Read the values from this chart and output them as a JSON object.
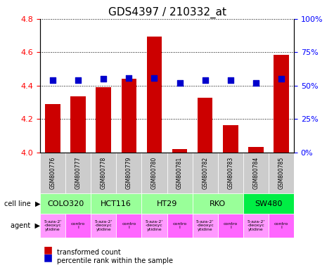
{
  "title": "GDS4397 / 210332_at",
  "samples": [
    "GSM800776",
    "GSM800777",
    "GSM800778",
    "GSM800779",
    "GSM800780",
    "GSM800781",
    "GSM800782",
    "GSM800783",
    "GSM800784",
    "GSM800785"
  ],
  "transformed_counts": [
    4.29,
    4.335,
    4.39,
    4.44,
    4.695,
    4.02,
    4.33,
    4.165,
    4.035,
    4.585
  ],
  "percentile_ranks": [
    54,
    54,
    55,
    56,
    56,
    52,
    54,
    54,
    52,
    55
  ],
  "percentile_ranks_raw": [
    0.54,
    0.54,
    0.55,
    0.56,
    0.56,
    0.52,
    0.54,
    0.54,
    0.52,
    0.55
  ],
  "bar_color": "#cc0000",
  "dot_color": "#0000cc",
  "ylim_left": [
    4.0,
    4.8
  ],
  "ylim_right": [
    0,
    1.0
  ],
  "yticks_left": [
    4.0,
    4.2,
    4.4,
    4.6,
    4.8
  ],
  "yticks_right": [
    0,
    0.25,
    0.5,
    0.75,
    1.0
  ],
  "ytick_labels_right": [
    "0%",
    "25%",
    "50%",
    "75%",
    "100%"
  ],
  "cell_lines": [
    "COLO320",
    "HCT116",
    "HT29",
    "RKO",
    "SW480"
  ],
  "cell_line_spans": [
    [
      0,
      2
    ],
    [
      2,
      4
    ],
    [
      4,
      6
    ],
    [
      6,
      8
    ],
    [
      8,
      10
    ]
  ],
  "cell_line_color": "#99ff99",
  "cell_line_sw480_color": "#00ff00",
  "agent_drug": "5-aza-2'\n-deoxyc\nytidine",
  "agent_control": "contro\nl",
  "agent_drug_color": "#ff99ff",
  "agent_control_color": "#ff66ff",
  "sample_bg_color": "#cccccc",
  "grid_color": "#000000",
  "dotted_style": "dotted"
}
